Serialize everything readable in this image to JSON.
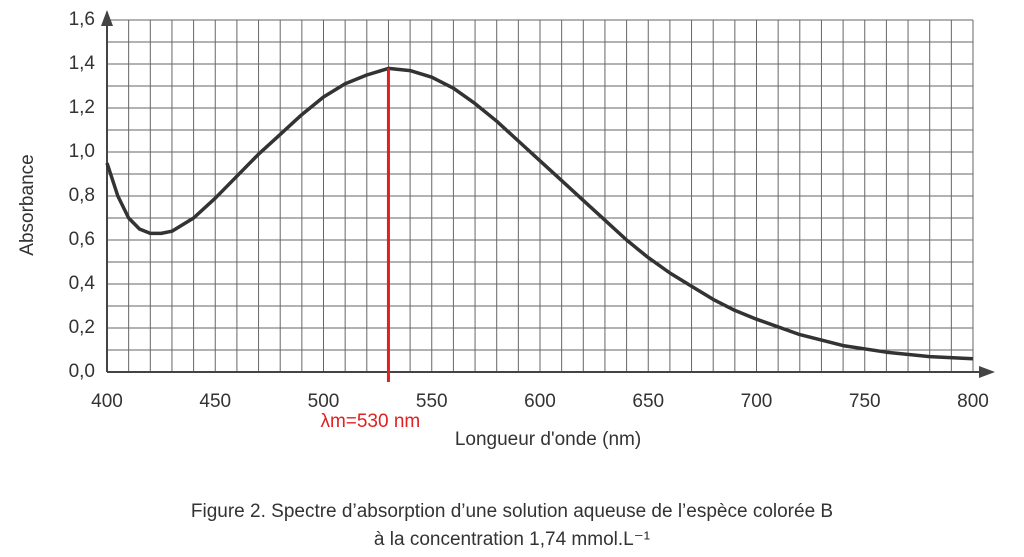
{
  "chart_data": {
    "type": "line",
    "x_label": "Longueur d'onde (nm)",
    "y_label": "Absorbance",
    "caption": [
      "Figure 2. Spectre d’absorption d’une solution aqueuse de l’espèce colorée B",
      "à la concentration 1,74 mmol.L⁻¹"
    ],
    "x": [
      400,
      405,
      410,
      415,
      420,
      425,
      430,
      440,
      450,
      460,
      470,
      480,
      490,
      500,
      510,
      520,
      530,
      540,
      550,
      560,
      570,
      580,
      590,
      600,
      610,
      620,
      630,
      640,
      650,
      660,
      670,
      680,
      690,
      700,
      720,
      740,
      760,
      780,
      800
    ],
    "series": [
      {
        "name": "Absorbance",
        "color": "#333333",
        "values": [
          0.95,
          0.8,
          0.7,
          0.65,
          0.63,
          0.63,
          0.64,
          0.7,
          0.79,
          0.89,
          0.99,
          1.08,
          1.17,
          1.25,
          1.31,
          1.35,
          1.38,
          1.37,
          1.34,
          1.29,
          1.22,
          1.14,
          1.05,
          0.96,
          0.87,
          0.78,
          0.69,
          0.6,
          0.52,
          0.45,
          0.39,
          0.33,
          0.28,
          0.24,
          0.17,
          0.12,
          0.09,
          0.07,
          0.06
        ]
      }
    ],
    "xlim": [
      400,
      800
    ],
    "xticks": [
      400,
      450,
      500,
      550,
      600,
      650,
      700,
      750,
      800
    ],
    "ylim": [
      0,
      1.6
    ],
    "yticks": [
      {
        "value": 0,
        "label": "0,0"
      },
      {
        "value": 0.2,
        "label": "0,2"
      },
      {
        "value": 0.4,
        "label": "0,4"
      },
      {
        "value": 0.6,
        "label": "0,6"
      },
      {
        "value": 0.8,
        "label": "0,8"
      },
      {
        "value": 1.0,
        "label": "1,0"
      },
      {
        "value": 1.2,
        "label": "1,2"
      },
      {
        "value": 1.4,
        "label": "1,4"
      },
      {
        "value": 1.6,
        "label": "1,6"
      }
    ],
    "grid": true,
    "annotation": {
      "x": 530,
      "y": 1.38,
      "label": "λm=530 nm",
      "color": "#e02020"
    }
  }
}
